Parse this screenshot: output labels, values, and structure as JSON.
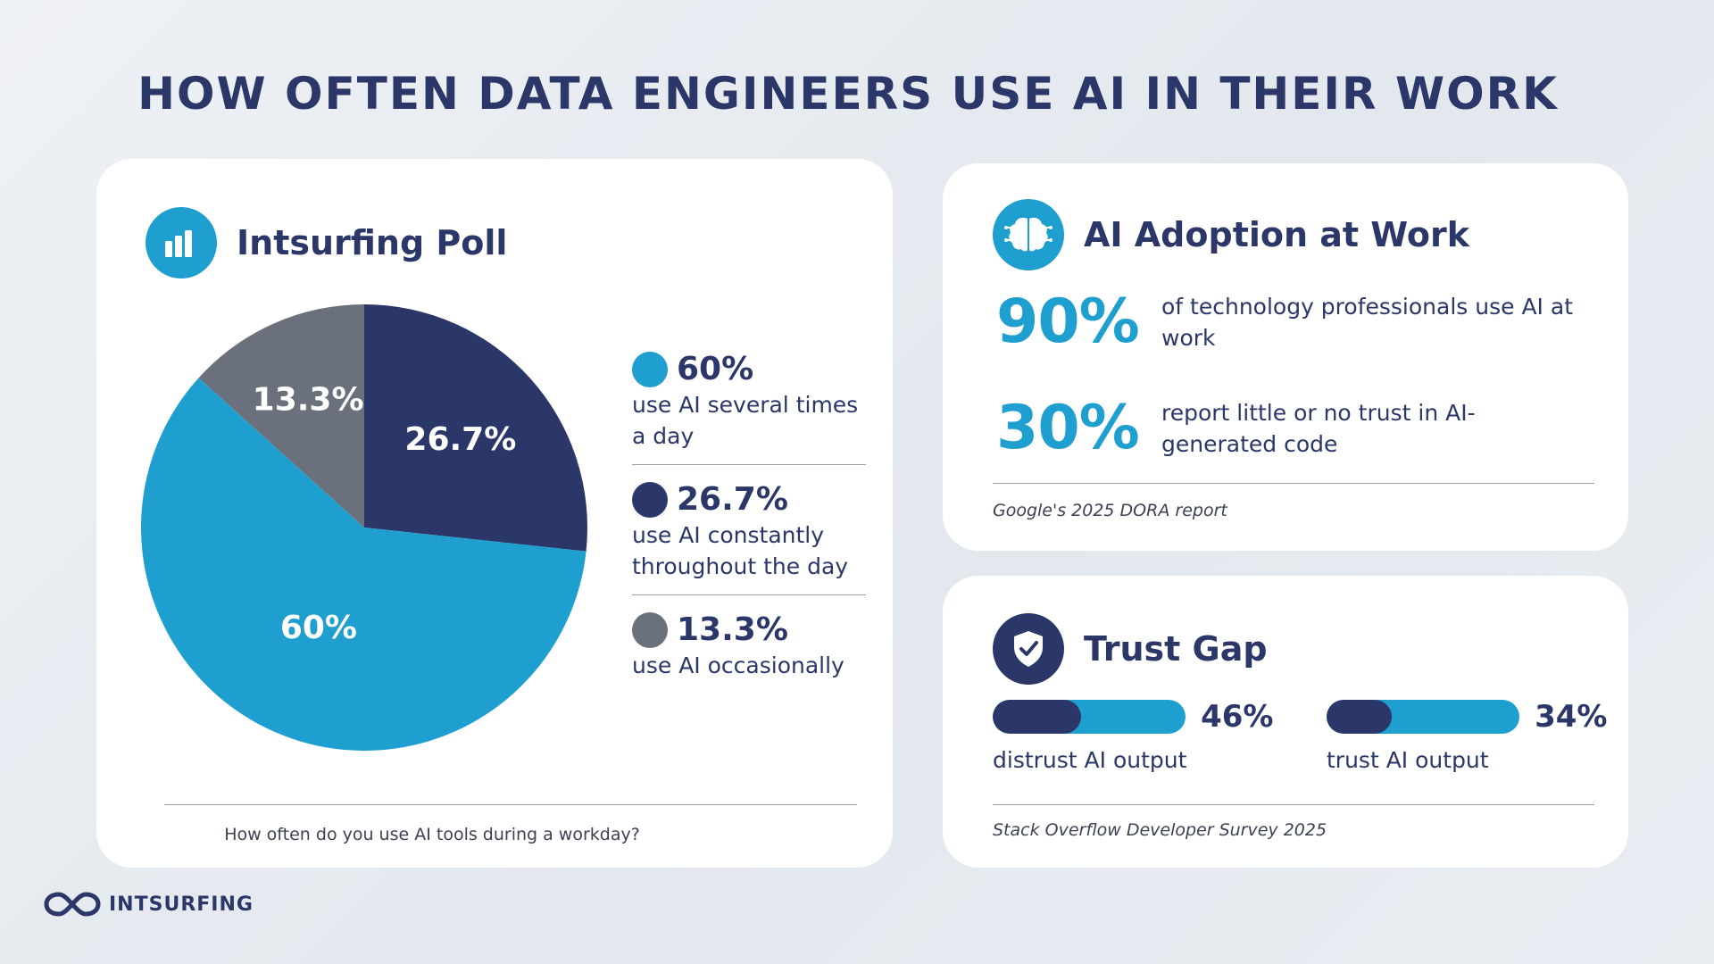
{
  "page": {
    "title": "HOW OFTEN DATA ENGINEERS USE AI IN THEIR WORK",
    "brand": "INTSURFING"
  },
  "poll_card": {
    "title": "Intsurfing Poll",
    "icon": "bar-chart-icon",
    "question": "How often do you use AI tools during a workday?",
    "legend": [
      {
        "value": "60%",
        "desc": "use AI several times a day",
        "color": "#1f9fd0"
      },
      {
        "value": "26.7%",
        "desc": "use AI constantly throughout the day",
        "color": "#2b3768"
      },
      {
        "value": "13.3%",
        "desc": "use AI occasionally",
        "color": "#6b717c"
      }
    ]
  },
  "chart_data": {
    "type": "pie",
    "slices": [
      {
        "label": "26.7%",
        "value": 26.7,
        "color": "#2b3768"
      },
      {
        "label": "60%",
        "value": 60,
        "color": "#1f9fd0"
      },
      {
        "label": "13.3%",
        "value": 13.3,
        "color": "#6b717c"
      }
    ]
  },
  "adoption_card": {
    "title": "AI Adoption at Work",
    "icon": "brain-icon",
    "stats": [
      {
        "value": "90%",
        "desc": "of technology professionals use AI at work"
      },
      {
        "value": "30%",
        "desc": "report little or no trust in AI-generated code"
      }
    ],
    "source": "Google's 2025 DORA report"
  },
  "trust_card": {
    "title": "Trust Gap",
    "icon": "shield-check-icon",
    "bars": [
      {
        "value": "46%",
        "fraction": 0.46,
        "label": "distrust AI output"
      },
      {
        "value": "34%",
        "fraction": 0.34,
        "label": "trust AI output"
      }
    ],
    "source": "Stack Overflow Developer Survey 2025"
  },
  "colors": {
    "navy": "#2b3768",
    "blue": "#1f9fd0",
    "gray": "#6b717c"
  }
}
